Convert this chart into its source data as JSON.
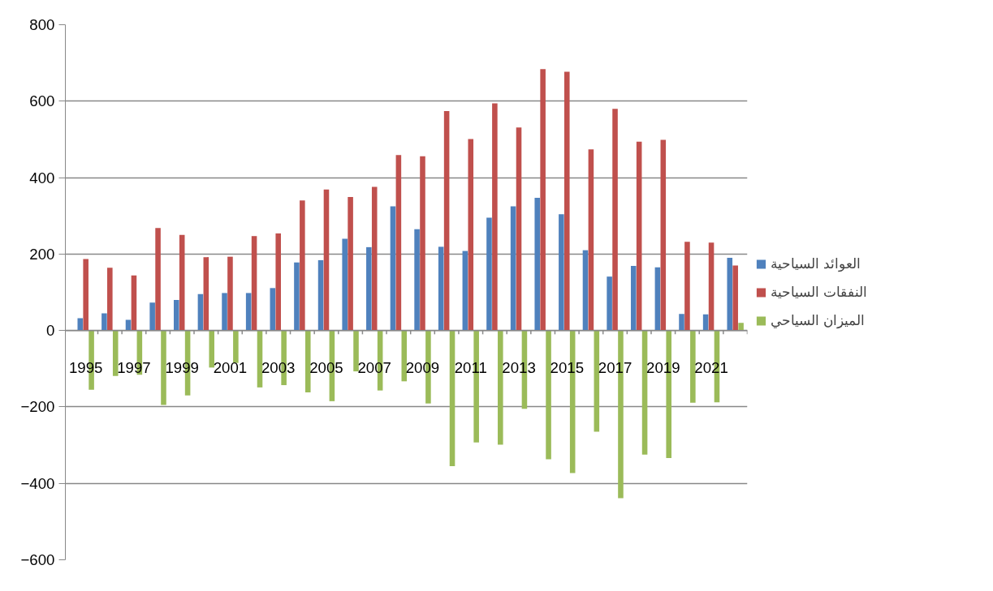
{
  "chart_data": {
    "type": "bar",
    "categories": [
      "1995",
      null,
      "1997",
      null,
      "1999",
      null,
      "2001",
      null,
      "2003",
      null,
      "2005",
      null,
      "2007",
      null,
      "2009",
      null,
      "2011",
      null,
      "2013",
      null,
      "2015",
      null,
      "2017",
      null,
      "2019",
      null,
      "2021",
      null
    ],
    "series": [
      {
        "name": "العوائد السياحية",
        "color": "#4f81bd",
        "values": [
          32,
          45,
          28,
          73,
          80,
          95,
          98,
          98,
          111,
          178,
          184,
          240,
          218,
          325,
          265,
          219,
          208,
          295,
          325,
          347,
          304,
          210,
          141,
          169,
          165,
          43,
          42,
          190
        ]
      },
      {
        "name": "النفقات السياحية",
        "color": "#c0504d",
        "values": [
          187,
          164,
          144,
          268,
          250,
          192,
          193,
          247,
          254,
          340,
          369,
          349,
          376,
          459,
          456,
          574,
          501,
          594,
          531,
          684,
          677,
          474,
          580,
          494,
          499,
          232,
          230,
          170
        ]
      },
      {
        "name": "الميزان السياحي",
        "color": "#9bbb59",
        "values": [
          -155,
          -119,
          -116,
          -195,
          -170,
          -97,
          -85,
          -149,
          -143,
          -162,
          -185,
          -107,
          -157,
          -133,
          -191,
          -355,
          -293,
          -299,
          -205,
          -337,
          -373,
          -265,
          -439,
          -325,
          -334,
          -189,
          -188,
          20
        ]
      }
    ],
    "ylim": [
      -600,
      800
    ],
    "yticks": [
      -600,
      -400,
      -200,
      0,
      200,
      400,
      600,
      800
    ],
    "grid": "y",
    "legend": "right"
  }
}
